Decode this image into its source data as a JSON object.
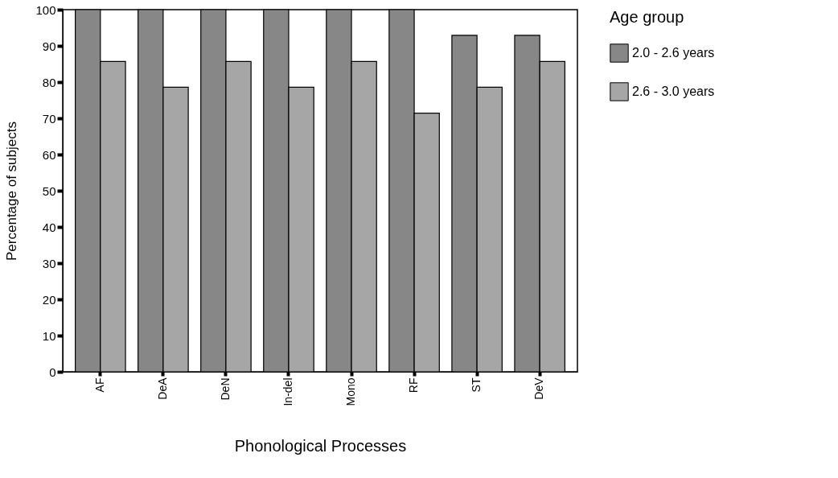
{
  "chart_data": {
    "type": "bar",
    "xlabel": "Phonological Processes",
    "ylabel": "Percentage of subjects",
    "legend_title": "Age group",
    "categories": [
      "AF",
      "DeA",
      "DeN",
      "In-del",
      "Mono",
      "RF",
      "ST",
      "DeV"
    ],
    "series": [
      {
        "name": "2.0 - 2.6 years",
        "color": "#878787",
        "values": [
          100,
          100,
          100,
          100,
          100,
          100,
          92.9,
          92.9
        ]
      },
      {
        "name": "2.6 - 3.0 years",
        "color": "#a6a6a6",
        "values": [
          85.7,
          78.6,
          85.7,
          78.6,
          85.7,
          71.4,
          78.6,
          85.7
        ]
      }
    ],
    "ylim": [
      0,
      100
    ],
    "yticks": [
      0,
      10,
      20,
      30,
      40,
      50,
      60,
      70,
      80,
      90,
      100
    ],
    "grid": false,
    "legend": "right"
  }
}
